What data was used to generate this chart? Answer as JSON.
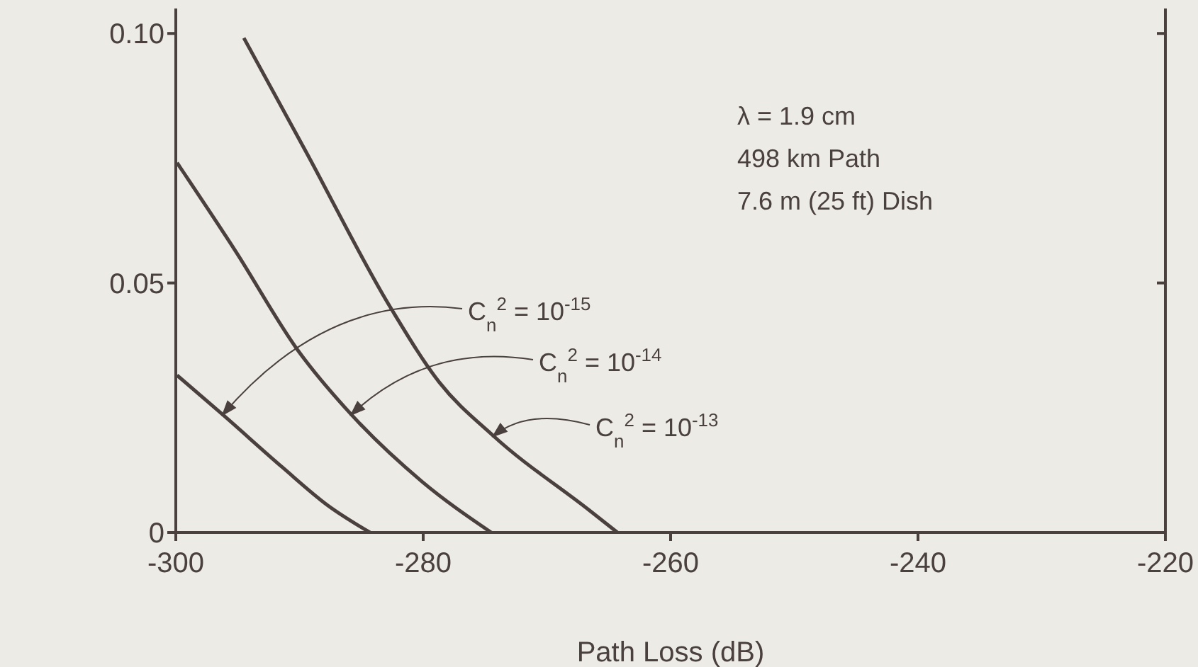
{
  "chart_data": {
    "type": "line",
    "xlabel": "Path Loss (dB)",
    "xlim": [
      -300,
      -220
    ],
    "xticks": [
      -300,
      -280,
      -260,
      -240,
      -220
    ],
    "ylim": [
      0,
      0.105
    ],
    "yticks": [
      0,
      {
        "value": 0.05,
        "label": "0.05"
      },
      {
        "value": 0.1,
        "label": "0.10"
      }
    ],
    "marker": "none",
    "line_style": "solid",
    "annotations": [
      "λ = 1.9 cm",
      "498 km Path",
      "7.6 m (25 ft) Dish"
    ],
    "series": [
      {
        "name": "C$_{n}$$^{2}$ = 10$^{-15}$",
        "color": "#4a403d",
        "x": [
          -299.9,
          -296.2,
          -291.4,
          -287.7,
          -284.3
        ],
        "values": [
          0.0315,
          0.0236,
          0.0131,
          0.0054,
          0
        ]
      },
      {
        "name": "C$_{n}$$^{2}$ = 10$^{-14}$",
        "color": "#4a403d",
        "x": [
          -299.9,
          -295.2,
          -290.1,
          -285.8,
          -280.1,
          -274.5
        ],
        "values": [
          0.0741,
          0.0565,
          0.0364,
          0.0236,
          0.0102,
          0
        ]
      },
      {
        "name": "C$_{n}$$^{2}$ = 10$^{-13}$",
        "color": "#4a403d",
        "x": [
          -294.5,
          -289.5,
          -282.6,
          -278.7,
          -274.3,
          -266.6,
          -264.3
        ],
        "values": [
          0.0991,
          0.0764,
          0.0449,
          0.0301,
          0.0193,
          0.0045,
          0
        ]
      }
    ]
  }
}
